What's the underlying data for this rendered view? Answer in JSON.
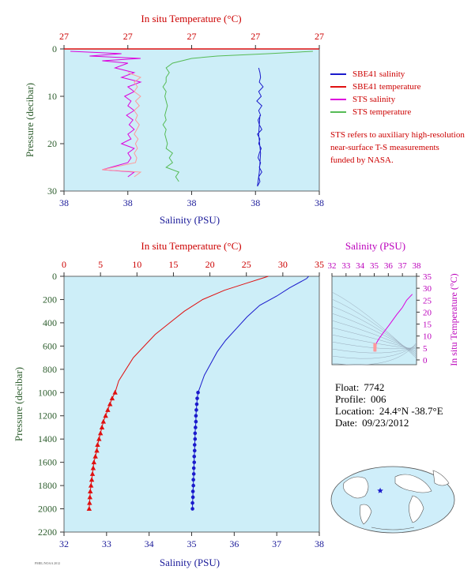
{
  "colors": {
    "plot_bg": "#cdeef8",
    "sbe41_salinity": "#1a1acc",
    "sbe41_temperature": "#e01010",
    "sts_salinity": "#dd00dd",
    "sts_temperature": "#55bb55",
    "sts_temperature_secondary": "#ff9a9a",
    "axis_red": "#cc0000",
    "axis_blue": "#1a1a99",
    "axis_green": "#2e5e2e",
    "axis_magenta": "#bb00bb"
  },
  "legend": {
    "items": [
      {
        "label": "SBE41 salinity",
        "color": "#1a1acc"
      },
      {
        "label": "SBE41 temperature",
        "color": "#e01010"
      },
      {
        "label": "STS salinity",
        "color": "#dd00dd"
      },
      {
        "label": "STS temperature",
        "color": "#55bb55"
      }
    ],
    "note": "STS refers to auxiliary high-resolution near-surface T-S measurements funded by NASA."
  },
  "info": {
    "float_label": "Float:",
    "float_value": "7742",
    "profile_label": "Profile:",
    "profile_value": "006",
    "location_label": "Location:",
    "location_value": "24.4°N  -38.7°E",
    "date_label": "Date:",
    "date_value": "09/23/2012"
  },
  "credit": "PMEL/NOAA 2012",
  "chart_data": [
    {
      "type": "line",
      "name": "near-surface",
      "title_top": "In situ Temperature (°C)",
      "xlabel": "Salinity (PSU)",
      "ylabel": "Pressure (decibar)",
      "top_ticks": [
        "27",
        "27",
        "27",
        "27",
        "27"
      ],
      "bottom_ticks": [
        "38",
        "38",
        "38",
        "38",
        "38"
      ],
      "y_ticks": [
        0,
        10,
        20,
        30
      ],
      "ylim": [
        0,
        30
      ],
      "xlim_index": [
        0,
        4
      ],
      "series": [
        {
          "key": "sbe41_salinity",
          "x": [
            3.05,
            3.07,
            3.08,
            3.06,
            3.12,
            3.05,
            3.09,
            3.02,
            3.1,
            3.05,
            3.08,
            3.04,
            3.06,
            3.1,
            3.03,
            3.07,
            3.05,
            3.09,
            3.06,
            3.04,
            3.08,
            3.06,
            3.1,
            3.05,
            3.07,
            3.03,
            3.06,
            3.08,
            3.05,
            3.07
          ],
          "y": [
            4,
            5,
            6,
            7,
            8,
            9,
            10,
            11,
            12,
            13,
            14,
            15,
            16,
            17,
            18,
            19,
            20,
            21,
            22,
            23,
            24,
            25,
            26,
            27,
            28,
            29,
            26,
            22,
            18,
            14
          ]
        },
        {
          "key": "sts_salinity",
          "x": [
            0.1,
            0.9,
            0.4,
            1.2,
            0.6,
            1.0,
            0.8,
            1.1,
            0.9,
            1.2,
            1.0,
            1.1,
            0.95,
            1.05,
            1.0,
            1.1,
            0.98,
            1.08,
            1.02,
            1.1,
            1.0,
            1.05,
            0.9,
            1.1,
            1.0,
            1.05,
            1.0,
            0.6,
            1.1,
            1.0
          ],
          "y": [
            0.5,
            1,
            1.5,
            2,
            2.5,
            3,
            4,
            5,
            6,
            7,
            8,
            9,
            10,
            11,
            12,
            13,
            14,
            15,
            16,
            17,
            18,
            19,
            20,
            21,
            22,
            23,
            24,
            25.5,
            26,
            27
          ]
        },
        {
          "key": "sts_temperature",
          "x": [
            3.9,
            3.2,
            2.4,
            2.0,
            1.7,
            1.6,
            1.65,
            1.6,
            1.6,
            1.55,
            1.6,
            1.58,
            1.6,
            1.62,
            1.6,
            1.58,
            1.6,
            1.55,
            1.6,
            1.58,
            1.6,
            1.62,
            1.6,
            1.7,
            1.65,
            1.7,
            1.6,
            1.8,
            1.75,
            1.8
          ],
          "y": [
            0.5,
            1,
            1.5,
            2,
            3,
            4,
            5,
            6,
            7,
            8,
            9,
            10,
            11,
            12,
            13,
            14,
            15,
            16,
            17,
            18,
            19,
            20,
            21,
            22,
            23,
            24,
            25,
            26,
            27,
            28
          ]
        },
        {
          "key": "sts_temperature_secondary",
          "x": [
            1.0,
            1.2,
            1.1,
            1.15,
            1.1,
            1.2,
            1.12,
            1.18,
            1.1,
            1.15,
            1.12,
            1.18,
            1.14,
            1.1,
            1.16,
            1.12,
            1.15,
            1.1,
            1.14,
            1.12,
            0.6,
            1.2,
            1.1
          ],
          "y": [
            5,
            6,
            7,
            8,
            9,
            10,
            11,
            12,
            13,
            14,
            15,
            16,
            17,
            18,
            19,
            20,
            21,
            22,
            23,
            24,
            25.5,
            26,
            27
          ]
        }
      ]
    },
    {
      "type": "line",
      "name": "full-profile",
      "title_top": "In situ Temperature (°C)",
      "xlabel": "Salinity (PSU)",
      "ylabel": "Pressure (decibar)",
      "x_salinity_ticks": [
        32,
        33,
        34,
        35,
        36,
        37,
        38
      ],
      "x_salinity_range": [
        32,
        38
      ],
      "x_temperature_ticks": [
        0,
        5,
        10,
        15,
        20,
        25,
        30,
        35
      ],
      "x_temperature_range": [
        0,
        35
      ],
      "y_ticks": [
        0,
        200,
        400,
        600,
        800,
        1000,
        1200,
        1400,
        1600,
        1800,
        2000,
        2200
      ],
      "ylim": [
        0,
        2200
      ],
      "series": [
        {
          "key": "temperature",
          "x_temp": [
            28,
            27.5,
            25,
            22,
            19,
            16.5,
            14.5,
            12.5,
            11,
            9.5,
            8.5,
            7.5,
            7
          ],
          "y": [
            0,
            10,
            60,
            120,
            200,
            300,
            400,
            500,
            600,
            700,
            800,
            900,
            1000
          ]
        },
        {
          "key": "salinity",
          "x_sal": [
            37.75,
            37.7,
            37.3,
            37.0,
            36.6,
            36.3,
            36.05,
            35.8,
            35.6,
            35.45,
            35.3,
            35.2,
            35.15
          ],
          "y": [
            0,
            20,
            100,
            170,
            250,
            350,
            450,
            550,
            650,
            750,
            850,
            950,
            1000
          ]
        },
        {
          "key": "temperature_points",
          "x_temp": [
            7.0,
            6.6,
            6.3,
            6.0,
            5.7,
            5.4,
            5.2,
            5.0,
            4.8,
            4.6,
            4.5,
            4.3,
            4.1,
            4.0,
            3.9,
            3.8,
            3.7,
            3.6,
            3.55,
            3.5,
            3.45
          ],
          "y": [
            1000,
            1050,
            1100,
            1150,
            1200,
            1250,
            1300,
            1350,
            1400,
            1450,
            1500,
            1550,
            1600,
            1650,
            1700,
            1750,
            1800,
            1850,
            1900,
            1950,
            2000
          ]
        },
        {
          "key": "salinity_points",
          "x_sal": [
            35.15,
            35.13,
            35.12,
            35.11,
            35.1,
            35.1,
            35.09,
            35.08,
            35.08,
            35.07,
            35.07,
            35.06,
            35.06,
            35.05,
            35.05,
            35.04,
            35.04,
            35.03,
            35.03,
            35.02,
            35.02
          ],
          "y": [
            1000,
            1050,
            1100,
            1150,
            1200,
            1250,
            1300,
            1350,
            1400,
            1450,
            1500,
            1550,
            1600,
            1650,
            1700,
            1750,
            1800,
            1850,
            1900,
            1950,
            2000
          ]
        }
      ]
    },
    {
      "type": "scatter",
      "name": "ts-diagram",
      "title_top": "Salinity (PSU)",
      "ylabel": "In situ Temperature (°C)",
      "x_ticks": [
        32,
        33,
        34,
        35,
        36,
        37,
        38
      ],
      "x_range": [
        32,
        38
      ],
      "y_ticks": [
        0,
        5,
        10,
        15,
        20,
        25,
        30,
        35
      ],
      "y_range": [
        -2,
        35
      ],
      "series": [
        {
          "key": "ts",
          "x": [
            35.05,
            35.1,
            35.15,
            35.3,
            35.6,
            36.05,
            36.6,
            37.0,
            37.3,
            37.7
          ],
          "y": [
            3.5,
            4.5,
            7,
            8.5,
            11,
            14.5,
            19,
            22,
            25,
            27.5
          ]
        }
      ]
    },
    {
      "type": "map",
      "name": "location-map",
      "marker": {
        "lat": 24.4,
        "lon": -38.7
      }
    }
  ]
}
